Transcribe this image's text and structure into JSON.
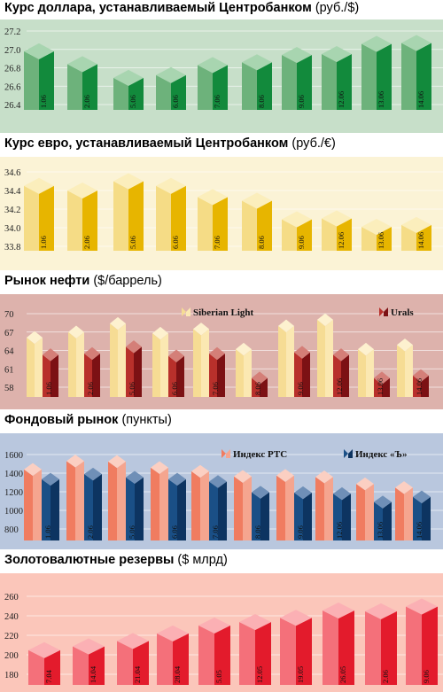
{
  "panels": [
    {
      "title": "Курс доллара, устанавливаемый Центробанком",
      "unit": "(руб./$)",
      "bg": "#c7dfc9",
      "chart_data": {
        "type": "bar",
        "categories": [
          "1.06",
          "2.06",
          "5.06",
          "6.06",
          "7.06",
          "8.06",
          "9.06",
          "12.06",
          "13.06",
          "14.06"
        ],
        "yticks": [
          "27.2",
          "27.0",
          "26.8",
          "26.6",
          "26.4"
        ],
        "ylim": [
          26.3,
          27.25
        ],
        "series": [
          {
            "values": [
              26.98,
              26.84,
              26.69,
              26.72,
              26.83,
              26.86,
              26.94,
              26.95,
              27.06,
              27.07
            ],
            "colors": {
              "front": "#6db27b",
              "side": "#128a3c",
              "top": "#a8d5b0"
            }
          }
        ]
      }
    },
    {
      "title": "Курс евро, устанавливаемый Центробанком",
      "unit": "(руб./€)",
      "bg": "#fbf3d6",
      "chart_data": {
        "type": "bar",
        "categories": [
          "1.06",
          "2.06",
          "5.06",
          "6.06",
          "7.06",
          "8.06",
          "9.06",
          "12.06",
          "13.06",
          "14.06"
        ],
        "yticks": [
          "34.6",
          "34.4",
          "34.2",
          "34.0",
          "33.8"
        ],
        "ylim": [
          33.7,
          34.7
        ],
        "series": [
          {
            "values": [
              34.45,
              34.4,
              34.5,
              34.45,
              34.33,
              34.29,
              34.09,
              34.1,
              34.01,
              34.03
            ],
            "colors": {
              "front": "#f5dc86",
              "side": "#e7b500",
              "top": "#fbeebc"
            }
          }
        ]
      }
    },
    {
      "title": "Рынок нефти",
      "unit": "($/баррель)",
      "bg": "#ddb2ac",
      "legend": [
        "Siberian Light",
        "Urals"
      ],
      "chart_data": {
        "type": "bar",
        "categories": [
          "1.06",
          "2.06",
          "5.06",
          "6.06",
          "7.06",
          "8.06",
          "9.06",
          "12.06",
          "13.06",
          "14.06"
        ],
        "yticks": [
          "70",
          "67",
          "64",
          "61",
          "58"
        ],
        "ylim": [
          56.2,
          71
        ],
        "series": [
          {
            "name": "Siberian Light",
            "values": [
              66.1,
              67.0,
              68.4,
              66.8,
              67.5,
              64.2,
              68.0,
              69.0,
              64.2,
              64.9
            ],
            "colors": {
              "front": "#f6dc94",
              "side": "#fbe8b2",
              "top": "#fdf1cf"
            }
          },
          {
            "name": "Urals",
            "values": [
              63.3,
              63.5,
              64.6,
              63.1,
              63.5,
              59.5,
              63.7,
              63.3,
              59.5,
              59.9
            ],
            "colors": {
              "front": "#b8302b",
              "side": "#7c1114",
              "top": "#d47f78"
            }
          }
        ]
      }
    },
    {
      "title": "Фондовый рынок",
      "unit": "(пункты)",
      "bg": "#b9c7de",
      "legend": [
        "Индекс РТС",
        "Индекс «Ъ»"
      ],
      "chart_data": {
        "type": "bar",
        "categories": [
          "1.06",
          "2.06",
          "5.06",
          "6.06",
          "7.06",
          "8.06",
          "9.06",
          "12.06",
          "13.06",
          "14.06"
        ],
        "yticks": [
          "1600",
          "1400",
          "1200",
          "1000",
          "800"
        ],
        "ylim": [
          700,
          1650
        ],
        "series": [
          {
            "name": "Индекс РТС",
            "values": [
              1440,
              1530,
              1525,
              1460,
              1420,
              1365,
              1375,
              1360,
              1285,
              1245
            ],
            "colors": {
              "front": "#f07c60",
              "side": "#f5a58f",
              "top": "#fbcfc2"
            }
          },
          {
            "name": "Индекс «Ъ»",
            "values": [
              1335,
              1390,
              1355,
              1335,
              1310,
              1195,
              1190,
              1180,
              1090,
              1145
            ],
            "colors": {
              "front": "#1a4f86",
              "side": "#0d3461",
              "top": "#6f8fb7"
            }
          }
        ]
      }
    },
    {
      "title": "Золотовалютные резервы",
      "unit": "($ млрд)",
      "bg": "#fbc6ba",
      "chart_data": {
        "type": "bar",
        "categories": [
          "7.04",
          "14.04",
          "21.04",
          "28.04",
          "5.05",
          "12.05",
          "19.05",
          "26.05",
          "2.06",
          "9.06"
        ],
        "yticks": [
          "260",
          "240",
          "220",
          "200",
          "180"
        ],
        "ylim": [
          172,
          268
        ],
        "series": [
          {
            "values": [
              204.8,
              208.6,
              214.2,
              221.9,
              230.1,
              233.6,
              237.9,
              245.4,
              244.7,
              249.5
            ],
            "colors": {
              "front": "#f4707a",
              "side": "#e31b2c",
              "top": "#fbb0b4"
            }
          }
        ]
      }
    }
  ]
}
